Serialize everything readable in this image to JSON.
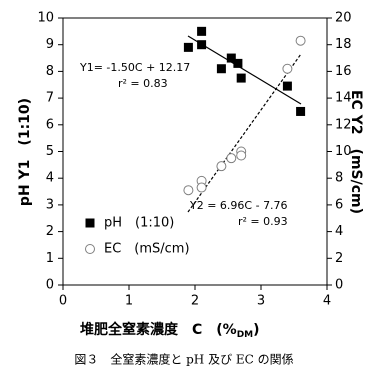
{
  "chart_data": {
    "type": "scatter",
    "x_label": "堆肥全窒素濃度　C　(%",
    "x_label_subscript": "DM",
    "x_label_end": ")",
    "y_label": "pH Y1　(1:10)",
    "y2_label": "EC Y2　(mS/cm)",
    "caption": "図３　全窒素濃度と pH 及び EC の関係",
    "annotations": [
      "Y1= -1.50C + 12.17",
      "r² = 0.83",
      "Y2 = 6.96C - 7.76",
      "r² = 0.93"
    ],
    "xlim": [
      0,
      4
    ],
    "xticks": [
      0,
      1,
      2,
      3,
      4
    ],
    "ylim": [
      0,
      10
    ],
    "yticks": [
      0,
      1,
      2,
      3,
      4,
      5,
      6,
      7,
      8,
      9,
      10
    ],
    "y2lim": [
      0,
      20
    ],
    "y2ticks": [
      0,
      2,
      4,
      6,
      8,
      10,
      12,
      14,
      16,
      18,
      20
    ],
    "legend": "lower left",
    "series": [
      {
        "name": "pH　(1:10)",
        "color": "#000000",
        "marker": "square",
        "x": [
          1.9,
          2.1,
          2.1,
          2.4,
          2.55,
          2.65,
          2.7,
          3.4,
          3.6
        ],
        "values": [
          8.9,
          9.5,
          9.0,
          8.1,
          8.5,
          8.3,
          7.75,
          7.45,
          6.5
        ]
      },
      {
        "name": "EC　(mS/cm)",
        "color": "#808080",
        "marker": "circle",
        "axis": "y2",
        "x": [
          1.9,
          2.1,
          2.1,
          2.4,
          2.55,
          2.7,
          2.7,
          3.4,
          3.6
        ],
        "values": [
          7.1,
          7.8,
          7.3,
          8.9,
          9.5,
          10.0,
          9.7,
          16.2,
          18.3
        ]
      }
    ]
  }
}
